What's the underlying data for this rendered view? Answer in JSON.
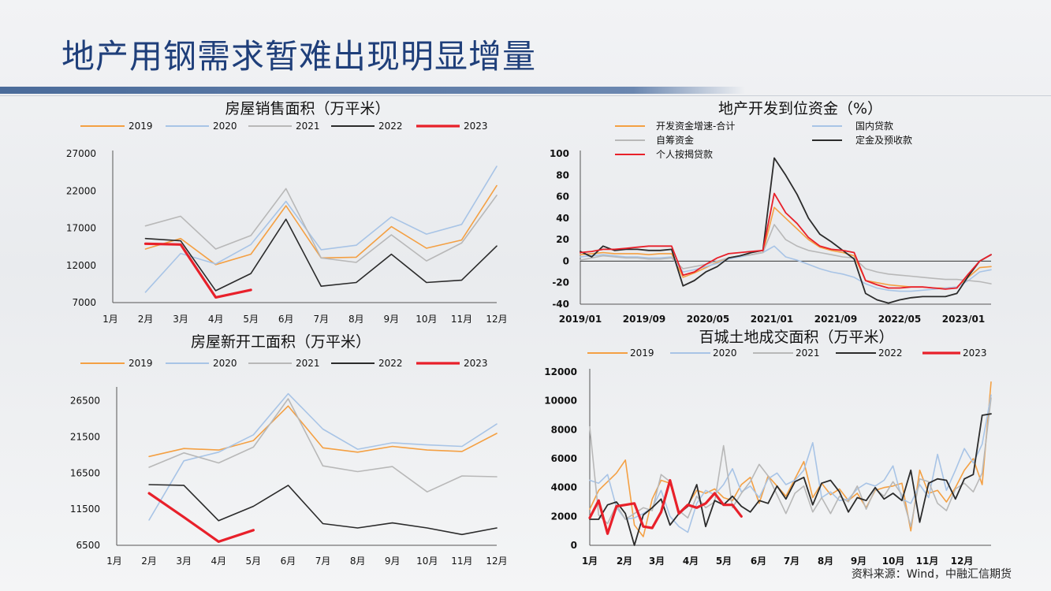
{
  "page": {
    "title": "地产用钢需求暂难出现明显增量",
    "source": "资料来源：Wind，中融汇信期货"
  },
  "colors": {
    "y2019": "#f4a043",
    "y2020": "#a8c4e6",
    "y2021": "#b8b8b8",
    "y2022": "#2b2b2b",
    "y2023": "#e8202a"
  },
  "chart_data": [
    {
      "id": "sales",
      "type": "line",
      "title": "房屋销售面积（万平米）",
      "categories": [
        "1月",
        "2月",
        "3月",
        "4月",
        "5月",
        "6月",
        "7月",
        "8月",
        "9月",
        "10月",
        "11月",
        "12月"
      ],
      "ylim": [
        7000,
        27000
      ],
      "yticks": [
        "27000",
        "22000",
        "17000",
        "12000",
        "7000"
      ],
      "ytick_values": [
        27000,
        22000,
        17000,
        12000,
        7000
      ],
      "legend": [
        "2019",
        "2020",
        "2021",
        "2022",
        "2023"
      ],
      "series": [
        {
          "name": "2019",
          "color": "#f4a043",
          "width": 1.6,
          "values": [
            null,
            14200,
            15600,
            12100,
            13500,
            20000,
            13000,
            13100,
            17200,
            14300,
            15400,
            22700
          ]
        },
        {
          "name": "2020",
          "color": "#a8c4e6",
          "width": 1.6,
          "values": [
            null,
            8400,
            13600,
            12200,
            14800,
            20600,
            14100,
            14700,
            18500,
            16200,
            17500,
            25300
          ]
        },
        {
          "name": "2021",
          "color": "#b8b8b8",
          "width": 1.6,
          "values": [
            null,
            17300,
            18600,
            14200,
            16000,
            22300,
            13000,
            12400,
            16100,
            12600,
            15000,
            21400
          ]
        },
        {
          "name": "2022",
          "color": "#2b2b2b",
          "width": 1.6,
          "values": [
            null,
            15600,
            15300,
            8600,
            10900,
            18200,
            9200,
            9700,
            13500,
            9700,
            10000,
            14600
          ]
        },
        {
          "name": "2023",
          "color": "#e8202a",
          "width": 3.2,
          "values": [
            null,
            14900,
            14800,
            7700,
            8700,
            null,
            null,
            null,
            null,
            null,
            null,
            null
          ]
        }
      ]
    },
    {
      "id": "funds",
      "type": "line",
      "title": "地产开发到位资金（%）",
      "xticks": [
        "2019/01",
        "2019/09",
        "2020/05",
        "2021/01",
        "2021/09",
        "2022/05",
        "2023/01"
      ],
      "ylim": [
        -40,
        100
      ],
      "yticks": [
        "100",
        "80",
        "60",
        "40",
        "20",
        "0",
        "-20",
        "-40"
      ],
      "ytick_values": [
        100,
        80,
        60,
        40,
        20,
        0,
        -20,
        -40
      ],
      "legend": [
        "开发资金增速-合计",
        "国内贷款",
        "自筹资金",
        "定金及预收款",
        "个人按揭贷款"
      ],
      "series": [
        {
          "name": "开发资金增速-合计",
          "color": "#f4a043",
          "width": 1.6,
          "values": [
            6,
            7,
            8,
            7,
            7,
            7,
            6,
            7,
            7,
            -15,
            -11,
            -6,
            -1,
            3,
            5,
            6,
            8,
            50,
            40,
            30,
            20,
            13,
            10,
            8,
            5,
            -18,
            -20,
            -22,
            -23,
            -24,
            -24,
            -25,
            -25,
            -24,
            -15,
            -6,
            -5
          ]
        },
        {
          "name": "国内贷款",
          "color": "#a8c4e6",
          "width": 1.6,
          "values": [
            4,
            5,
            6,
            5,
            4,
            4,
            3,
            3,
            4,
            -10,
            -8,
            -5,
            -2,
            2,
            4,
            6,
            8,
            14,
            4,
            1,
            -3,
            -7,
            -10,
            -12,
            -15,
            -21,
            -25,
            -27,
            -28,
            -28,
            -27,
            -26,
            -25,
            -24,
            -18,
            -10,
            -8
          ]
        },
        {
          "name": "自筹资金",
          "color": "#b8b8b8",
          "width": 1.6,
          "values": [
            1,
            3,
            5,
            4,
            3,
            3,
            2,
            2,
            3,
            -7,
            -5,
            -3,
            0,
            3,
            5,
            6,
            8,
            34,
            20,
            14,
            10,
            8,
            6,
            4,
            3,
            -7,
            -10,
            -12,
            -13,
            -14,
            -15,
            -16,
            -17,
            -17,
            -18,
            -19,
            -21
          ]
        },
        {
          "name": "定金及预收款",
          "color": "#2b2b2b",
          "width": 1.8,
          "values": [
            9,
            4,
            14,
            10,
            11,
            11,
            10,
            10,
            11,
            -23,
            -18,
            -10,
            -5,
            3,
            5,
            8,
            10,
            96,
            80,
            62,
            40,
            25,
            18,
            10,
            2,
            -30,
            -36,
            -39,
            -36,
            -34,
            -33,
            -33,
            -33,
            -30,
            -14,
            0,
            6
          ]
        },
        {
          "name": "个人按揭贷款",
          "color": "#e8202a",
          "width": 1.8,
          "values": [
            8,
            9,
            11,
            11,
            12,
            13,
            14,
            14,
            14,
            -13,
            -10,
            -3,
            3,
            7,
            8,
            9,
            10,
            63,
            45,
            35,
            22,
            14,
            11,
            10,
            8,
            -18,
            -22,
            -25,
            -25,
            -24,
            -24,
            -25,
            -26,
            -25,
            -12,
            0,
            6
          ]
        }
      ]
    },
    {
      "id": "starts",
      "type": "line",
      "title": "房屋新开工面积（万平米）",
      "categories": [
        "1月",
        "2月",
        "3月",
        "4月",
        "5月",
        "6月",
        "7月",
        "8月",
        "9月",
        "10月",
        "11月",
        "12月"
      ],
      "ylim": [
        6500,
        28000
      ],
      "yticks": [
        "26500",
        "21500",
        "16500",
        "11500",
        "6500"
      ],
      "ytick_values": [
        26500,
        21500,
        16500,
        11500,
        6500
      ],
      "legend": [
        "2019",
        "2020",
        "2021",
        "2022",
        "2023"
      ],
      "series": [
        {
          "name": "2019",
          "color": "#f4a043",
          "width": 1.6,
          "values": [
            null,
            18800,
            19900,
            19700,
            21000,
            25800,
            20000,
            19400,
            20200,
            19700,
            19500,
            22000
          ]
        },
        {
          "name": "2020",
          "color": "#a8c4e6",
          "width": 1.6,
          "values": [
            null,
            10000,
            18200,
            19400,
            21800,
            27500,
            22600,
            19800,
            20700,
            20400,
            20200,
            23300
          ]
        },
        {
          "name": "2021",
          "color": "#b8b8b8",
          "width": 1.6,
          "values": [
            null,
            17300,
            19300,
            17900,
            20100,
            26800,
            17500,
            16700,
            17400,
            13900,
            16100,
            16000
          ]
        },
        {
          "name": "2022",
          "color": "#2b2b2b",
          "width": 1.6,
          "values": [
            null,
            14900,
            14800,
            9900,
            11900,
            14800,
            9500,
            8900,
            9600,
            8900,
            8000,
            8900
          ]
        },
        {
          "name": "2023",
          "color": "#e8202a",
          "width": 3.2,
          "values": [
            null,
            13700,
            10400,
            7000,
            8600,
            null,
            null,
            null,
            null,
            null,
            null,
            null
          ]
        }
      ]
    },
    {
      "id": "land",
      "type": "line",
      "title": "百城土地成交面积（万平米）",
      "xticks": [
        "1月",
        "2月",
        "3月",
        "4月",
        "5月",
        "6月",
        "7月",
        "8月",
        "9月",
        "10月",
        "11月",
        "12月"
      ],
      "ylim": [
        0,
        12000
      ],
      "yticks": [
        "12000",
        "10000",
        "8000",
        "6000",
        "4000",
        "2000",
        "0"
      ],
      "ytick_values": [
        12000,
        10000,
        8000,
        6000,
        4000,
        2000,
        0
      ],
      "legend": [
        "2019",
        "2020",
        "2021",
        "2022",
        "2023"
      ],
      "series": [
        {
          "name": "2019",
          "color": "#f4a043",
          "width": 1.6,
          "values": [
            2500,
            3800,
            4400,
            5000,
            5900,
            1400,
            600,
            3200,
            4500,
            4300,
            2200,
            2800,
            3800,
            3600,
            3900,
            3300,
            3100,
            4200,
            4700,
            2900,
            4800,
            4100,
            3400,
            4600,
            5800,
            3300,
            4300,
            3500,
            3900,
            3100,
            3600,
            2600,
            3800,
            4000,
            4100,
            4300,
            1000,
            5200,
            3600,
            3800,
            3000,
            4000,
            5200,
            6000,
            4200,
            11300
          ]
        },
        {
          "name": "2020",
          "color": "#a8c4e6",
          "width": 1.6,
          "values": [
            4500,
            4300,
            4900,
            2600,
            1800,
            1900,
            2200,
            2600,
            3800,
            2000,
            1300,
            900,
            2900,
            3800,
            3500,
            4200,
            5300,
            3700,
            4100,
            3300,
            4600,
            5000,
            4200,
            4500,
            5200,
            7100,
            3300,
            3700,
            3100,
            3200,
            3900,
            4300,
            4100,
            4500,
            5500,
            3200,
            2900,
            4200,
            3300,
            6300,
            3800,
            5200,
            6700,
            5700,
            7000,
            10400
          ]
        },
        {
          "name": "2021",
          "color": "#b8b8b8",
          "width": 1.6,
          "values": [
            8200,
            2100,
            1500,
            2800,
            1800,
            2200,
            2600,
            2400,
            4900,
            4400,
            2400,
            1900,
            3400,
            2600,
            3000,
            6900,
            2600,
            3600,
            4400,
            5600,
            4800,
            3500,
            2200,
            3600,
            4100,
            2300,
            3300,
            2200,
            3400,
            3000,
            4100,
            2500,
            3900,
            3400,
            4400,
            3500,
            1300,
            4600,
            4400,
            2900,
            2400,
            3900,
            4300,
            3700,
            5000,
            10200
          ]
        },
        {
          "name": "2022",
          "color": "#2b2b2b",
          "width": 1.8,
          "values": [
            1800,
            1800,
            2800,
            3000,
            2200,
            0,
            2100,
            2600,
            3200,
            1400,
            2200,
            2700,
            4200,
            1300,
            3100,
            2800,
            3400,
            2700,
            2300,
            3100,
            2900,
            4100,
            3200,
            4400,
            4700,
            2800,
            4300,
            4500,
            3700,
            2300,
            3300,
            3100,
            4000,
            3200,
            3600,
            3100,
            5200,
            1600,
            4300,
            4600,
            4500,
            3200,
            4600,
            4900,
            9000,
            9100
          ]
        },
        {
          "name": "2023",
          "color": "#e8202a",
          "width": 3.2,
          "values": [
            1900,
            3100,
            800,
            2700,
            2800,
            2900,
            1300,
            1200,
            2300,
            4500,
            2200,
            2800,
            2600,
            2900,
            3600,
            2800,
            2800,
            2000,
            null,
            null,
            null,
            null,
            null,
            null,
            null,
            null,
            null,
            null,
            null,
            null,
            null,
            null,
            null,
            null,
            null,
            null,
            null,
            null,
            null,
            null,
            null,
            null,
            null,
            null,
            null,
            null
          ]
        }
      ]
    }
  ]
}
